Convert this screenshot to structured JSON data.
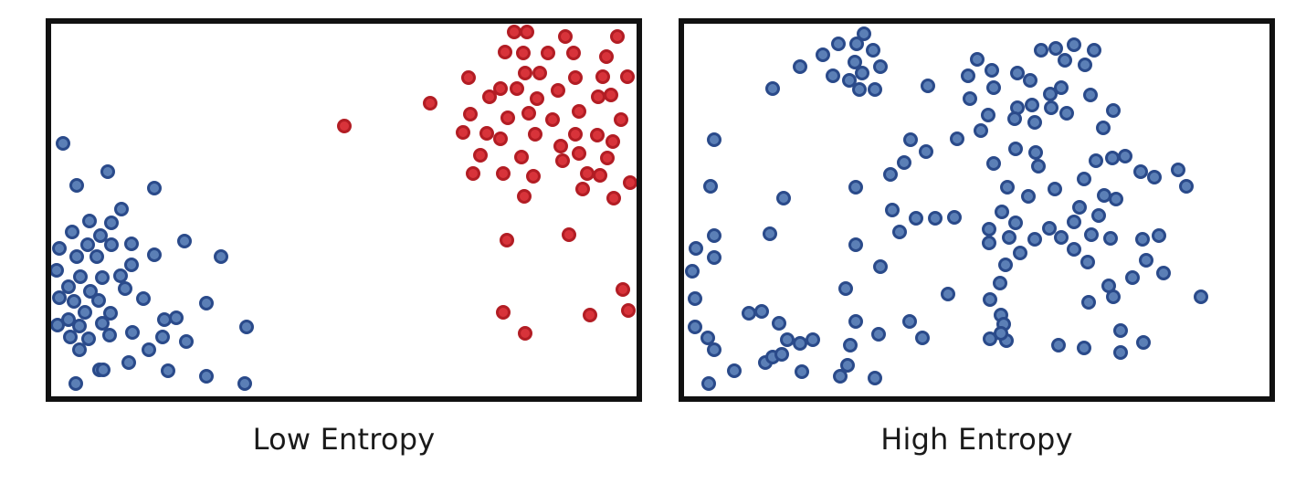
{
  "panels": [
    {
      "id": "low",
      "caption": "Low Entropy"
    },
    {
      "id": "high",
      "caption": "High Entropy"
    }
  ],
  "colors": {
    "blue_fill": "#5b7fb6",
    "blue_stroke": "#2a4a8a",
    "red_fill": "#d8333a",
    "red_stroke": "#b21d24",
    "frame": "#111111",
    "background": "#ffffff"
  },
  "particles": {
    "low": [
      [
        "b",
        69,
        157
      ],
      [
        "b",
        118,
        188
      ],
      [
        "b",
        84,
        203
      ],
      [
        "b",
        169,
        206
      ],
      [
        "b",
        133,
        229
      ],
      [
        "b",
        98,
        242
      ],
      [
        "b",
        122,
        244
      ],
      [
        "b",
        79,
        254
      ],
      [
        "b",
        110,
        258
      ],
      [
        "b",
        65,
        272
      ],
      [
        "b",
        96,
        268
      ],
      [
        "b",
        144,
        267
      ],
      [
        "b",
        122,
        268
      ],
      [
        "b",
        202,
        264
      ],
      [
        "b",
        84,
        281
      ],
      [
        "b",
        106,
        281
      ],
      [
        "b",
        169,
        279
      ],
      [
        "b",
        242,
        281
      ],
      [
        "b",
        144,
        290
      ],
      [
        "b",
        62,
        296
      ],
      [
        "b",
        132,
        302
      ],
      [
        "b",
        88,
        303
      ],
      [
        "b",
        112,
        304
      ],
      [
        "b",
        75,
        314
      ],
      [
        "b",
        99,
        319
      ],
      [
        "b",
        137,
        316
      ],
      [
        "b",
        65,
        326
      ],
      [
        "b",
        81,
        330
      ],
      [
        "b",
        108,
        329
      ],
      [
        "b",
        157,
        327
      ],
      [
        "b",
        226,
        332
      ],
      [
        "b",
        93,
        342
      ],
      [
        "b",
        121,
        343
      ],
      [
        "b",
        75,
        350
      ],
      [
        "b",
        63,
        356
      ],
      [
        "b",
        87,
        357
      ],
      [
        "b",
        112,
        354
      ],
      [
        "b",
        180,
        350
      ],
      [
        "b",
        193,
        348
      ],
      [
        "b",
        145,
        364
      ],
      [
        "b",
        270,
        358
      ],
      [
        "b",
        77,
        369
      ],
      [
        "b",
        97,
        371
      ],
      [
        "b",
        120,
        367
      ],
      [
        "b",
        178,
        369
      ],
      [
        "b",
        204,
        374
      ],
      [
        "b",
        87,
        383
      ],
      [
        "b",
        163,
        383
      ],
      [
        "b",
        141,
        397
      ],
      [
        "b",
        109,
        405
      ],
      [
        "b",
        184,
        406
      ],
      [
        "b",
        226,
        412
      ],
      [
        "b",
        83,
        420
      ],
      [
        "b",
        268,
        420
      ],
      [
        "b",
        113,
        405
      ],
      [
        "r",
        563,
        35
      ],
      [
        "r",
        577,
        35
      ],
      [
        "r",
        619,
        40
      ],
      [
        "r",
        676,
        40
      ],
      [
        "r",
        553,
        57
      ],
      [
        "r",
        573,
        58
      ],
      [
        "r",
        600,
        58
      ],
      [
        "r",
        628,
        58
      ],
      [
        "r",
        664,
        62
      ],
      [
        "r",
        575,
        80
      ],
      [
        "r",
        591,
        80
      ],
      [
        "r",
        630,
        85
      ],
      [
        "r",
        660,
        84
      ],
      [
        "r",
        687,
        84
      ],
      [
        "r",
        513,
        85
      ],
      [
        "r",
        548,
        97
      ],
      [
        "r",
        566,
        97
      ],
      [
        "r",
        611,
        99
      ],
      [
        "r",
        655,
        106
      ],
      [
        "r",
        536,
        106
      ],
      [
        "r",
        588,
        108
      ],
      [
        "r",
        471,
        113
      ],
      [
        "r",
        669,
        104
      ],
      [
        "r",
        634,
        122
      ],
      [
        "r",
        515,
        125
      ],
      [
        "r",
        579,
        124
      ],
      [
        "r",
        556,
        129
      ],
      [
        "r",
        680,
        131
      ],
      [
        "r",
        605,
        131
      ],
      [
        "r",
        377,
        138
      ],
      [
        "r",
        507,
        145
      ],
      [
        "r",
        533,
        146
      ],
      [
        "r",
        586,
        147
      ],
      [
        "r",
        630,
        147
      ],
      [
        "r",
        654,
        148
      ],
      [
        "r",
        671,
        155
      ],
      [
        "r",
        614,
        160
      ],
      [
        "r",
        548,
        152
      ],
      [
        "r",
        571,
        172
      ],
      [
        "r",
        526,
        170
      ],
      [
        "r",
        665,
        173
      ],
      [
        "r",
        616,
        176
      ],
      [
        "r",
        634,
        168
      ],
      [
        "r",
        643,
        190
      ],
      [
        "r",
        551,
        190
      ],
      [
        "r",
        584,
        193
      ],
      [
        "r",
        657,
        192
      ],
      [
        "r",
        518,
        190
      ],
      [
        "r",
        690,
        200
      ],
      [
        "r",
        638,
        207
      ],
      [
        "r",
        574,
        215
      ],
      [
        "r",
        672,
        217
      ],
      [
        "r",
        623,
        257
      ],
      [
        "r",
        555,
        263
      ],
      [
        "r",
        682,
        317
      ],
      [
        "r",
        688,
        340
      ],
      [
        "r",
        551,
        342
      ],
      [
        "r",
        646,
        345
      ],
      [
        "r",
        575,
        365
      ]
    ],
    "high": [
      [
        "b",
        946,
        37
      ],
      [
        "b",
        918,
        48
      ],
      [
        "b",
        938,
        48
      ],
      [
        "b",
        956,
        55
      ],
      [
        "b",
        901,
        60
      ],
      [
        "b",
        936,
        68
      ],
      [
        "b",
        944,
        80
      ],
      [
        "b",
        912,
        83
      ],
      [
        "b",
        964,
        73
      ],
      [
        "b",
        930,
        88
      ],
      [
        "b",
        941,
        98
      ],
      [
        "b",
        958,
        98
      ],
      [
        "b",
        846,
        97
      ],
      [
        "b",
        876,
        73
      ],
      [
        "b",
        1140,
        55
      ],
      [
        "b",
        1156,
        53
      ],
      [
        "b",
        1176,
        49
      ],
      [
        "b",
        1198,
        55
      ],
      [
        "b",
        1166,
        66
      ],
      [
        "b",
        1188,
        71
      ],
      [
        "b",
        1070,
        65
      ],
      [
        "b",
        1086,
        77
      ],
      [
        "b",
        1060,
        83
      ],
      [
        "b",
        1114,
        80
      ],
      [
        "b",
        1128,
        88
      ],
      [
        "b",
        1162,
        96
      ],
      [
        "b",
        1150,
        103
      ],
      [
        "b",
        1194,
        104
      ],
      [
        "b",
        1088,
        96
      ],
      [
        "b",
        1062,
        108
      ],
      [
        "b",
        1114,
        118
      ],
      [
        "b",
        1130,
        115
      ],
      [
        "b",
        1151,
        118
      ],
      [
        "b",
        1168,
        124
      ],
      [
        "b",
        1111,
        130
      ],
      [
        "b",
        1133,
        134
      ],
      [
        "b",
        1016,
        94
      ],
      [
        "b",
        1082,
        126
      ],
      [
        "b",
        1074,
        143
      ],
      [
        "b",
        1219,
        121
      ],
      [
        "b",
        1208,
        140
      ],
      [
        "b",
        1048,
        152
      ],
      [
        "b",
        1112,
        163
      ],
      [
        "b",
        997,
        153
      ],
      [
        "b",
        1014,
        166
      ],
      [
        "b",
        990,
        178
      ],
      [
        "b",
        782,
        153
      ],
      [
        "b",
        975,
        191
      ],
      [
        "b",
        1088,
        179
      ],
      [
        "b",
        1134,
        167
      ],
      [
        "b",
        1137,
        182
      ],
      [
        "b",
        1218,
        173
      ],
      [
        "b",
        1232,
        171
      ],
      [
        "b",
        1249,
        188
      ],
      [
        "b",
        1200,
        176
      ],
      [
        "b",
        1264,
        194
      ],
      [
        "b",
        1290,
        186
      ],
      [
        "b",
        1299,
        204
      ],
      [
        "b",
        778,
        204
      ],
      [
        "b",
        858,
        217
      ],
      [
        "b",
        937,
        205
      ],
      [
        "b",
        1103,
        205
      ],
      [
        "b",
        1126,
        215
      ],
      [
        "b",
        1155,
        207
      ],
      [
        "b",
        1187,
        196
      ],
      [
        "b",
        1209,
        214
      ],
      [
        "b",
        1222,
        218
      ],
      [
        "b",
        1182,
        227
      ],
      [
        "b",
        1203,
        236
      ],
      [
        "b",
        1176,
        243
      ],
      [
        "b",
        1149,
        250
      ],
      [
        "b",
        1133,
        262
      ],
      [
        "b",
        1162,
        260
      ],
      [
        "b",
        1195,
        257
      ],
      [
        "b",
        1216,
        261
      ],
      [
        "b",
        1176,
        273
      ],
      [
        "b",
        1191,
        287
      ],
      [
        "b",
        1251,
        262
      ],
      [
        "b",
        1269,
        258
      ],
      [
        "b",
        1255,
        285
      ],
      [
        "b",
        1274,
        299
      ],
      [
        "b",
        1024,
        239
      ],
      [
        "b",
        1045,
        238
      ],
      [
        "b",
        1083,
        251
      ],
      [
        "b",
        1083,
        266
      ],
      [
        "b",
        1105,
        260
      ],
      [
        "b",
        1112,
        244
      ],
      [
        "b",
        1097,
        232
      ],
      [
        "b",
        1117,
        277
      ],
      [
        "b",
        1101,
        290
      ],
      [
        "b",
        1095,
        310
      ],
      [
        "b",
        985,
        254
      ],
      [
        "b",
        1003,
        239
      ],
      [
        "b",
        977,
        230
      ],
      [
        "b",
        843,
        256
      ],
      [
        "b",
        782,
        258
      ],
      [
        "b",
        762,
        272
      ],
      [
        "b",
        782,
        282
      ],
      [
        "b",
        758,
        297
      ],
      [
        "b",
        964,
        292
      ],
      [
        "b",
        937,
        268
      ],
      [
        "b",
        1084,
        328
      ],
      [
        "b",
        1096,
        345
      ],
      [
        "b",
        1099,
        355
      ],
      [
        "b",
        1084,
        371
      ],
      [
        "b",
        1102,
        373
      ],
      [
        "b",
        1038,
        322
      ],
      [
        "b",
        926,
        316
      ],
      [
        "b",
        1192,
        331
      ],
      [
        "b",
        1219,
        325
      ],
      [
        "b",
        1240,
        304
      ],
      [
        "b",
        1315,
        325
      ],
      [
        "b",
        761,
        327
      ],
      [
        "b",
        820,
        343
      ],
      [
        "b",
        834,
        341
      ],
      [
        "b",
        853,
        354
      ],
      [
        "b",
        761,
        358
      ],
      [
        "b",
        775,
        370
      ],
      [
        "b",
        782,
        383
      ],
      [
        "b",
        804,
        406
      ],
      [
        "b",
        776,
        420
      ],
      [
        "b",
        838,
        397
      ],
      [
        "b",
        846,
        391
      ],
      [
        "b",
        862,
        372
      ],
      [
        "b",
        876,
        376
      ],
      [
        "b",
        890,
        372
      ],
      [
        "b",
        856,
        388
      ],
      [
        "b",
        878,
        407
      ],
      [
        "b",
        931,
        378
      ],
      [
        "b",
        937,
        352
      ],
      [
        "b",
        962,
        366
      ],
      [
        "b",
        996,
        352
      ],
      [
        "b",
        1010,
        370
      ],
      [
        "b",
        1096,
        365
      ],
      [
        "b",
        1159,
        378
      ],
      [
        "b",
        1187,
        381
      ],
      [
        "b",
        1227,
        386
      ],
      [
        "b",
        1252,
        375
      ],
      [
        "b",
        1227,
        362
      ],
      [
        "b",
        1214,
        313
      ],
      [
        "b",
        928,
        400
      ],
      [
        "b",
        958,
        414
      ],
      [
        "b",
        920,
        412
      ]
    ]
  }
}
